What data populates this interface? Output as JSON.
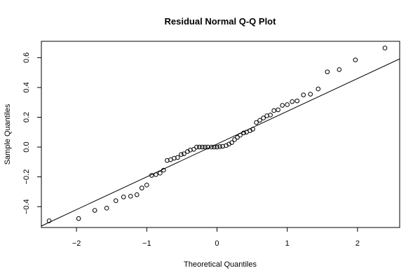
{
  "chart_data": {
    "type": "scatter",
    "title": "Residual Normal Q-Q Plot",
    "xlabel": "Theoretical Quantiles",
    "ylabel": "Sample Quantiles",
    "xlim": [
      -2.5,
      2.6
    ],
    "ylim": [
      -0.54,
      0.71
    ],
    "x_ticks": [
      {
        "value": -2,
        "label": "−2"
      },
      {
        "value": -1,
        "label": "−1"
      },
      {
        "value": 0,
        "label": "0"
      },
      {
        "value": 1,
        "label": "1"
      },
      {
        "value": 2,
        "label": "2"
      }
    ],
    "y_ticks": [
      {
        "value": -0.4,
        "label": "−0.4"
      },
      {
        "value": -0.2,
        "label": "−0.2"
      },
      {
        "value": 0.0,
        "label": "0.0"
      },
      {
        "value": 0.2,
        "label": "0.2"
      },
      {
        "value": 0.4,
        "label": "0.4"
      },
      {
        "value": 0.6,
        "label": "0.6"
      }
    ],
    "grid": false,
    "reference_line": {
      "intercept": 0.02,
      "slope": 0.22
    },
    "points": [
      {
        "x": -2.39,
        "y": -0.495
      },
      {
        "x": -1.97,
        "y": -0.48
      },
      {
        "x": -1.74,
        "y": -0.425
      },
      {
        "x": -1.57,
        "y": -0.41
      },
      {
        "x": -1.44,
        "y": -0.36
      },
      {
        "x": -1.33,
        "y": -0.335
      },
      {
        "x": -1.23,
        "y": -0.33
      },
      {
        "x": -1.14,
        "y": -0.32
      },
      {
        "x": -1.07,
        "y": -0.275
      },
      {
        "x": -1.0,
        "y": -0.255
      },
      {
        "x": -0.93,
        "y": -0.19
      },
      {
        "x": -0.87,
        "y": -0.185
      },
      {
        "x": -0.81,
        "y": -0.175
      },
      {
        "x": -0.76,
        "y": -0.155
      },
      {
        "x": -0.71,
        "y": -0.09
      },
      {
        "x": -0.66,
        "y": -0.085
      },
      {
        "x": -0.61,
        "y": -0.075
      },
      {
        "x": -0.56,
        "y": -0.07
      },
      {
        "x": -0.51,
        "y": -0.05
      },
      {
        "x": -0.47,
        "y": -0.045
      },
      {
        "x": -0.42,
        "y": -0.03
      },
      {
        "x": -0.38,
        "y": -0.02
      },
      {
        "x": -0.33,
        "y": -0.015
      },
      {
        "x": -0.29,
        "y": 0.0
      },
      {
        "x": -0.25,
        "y": 0.0
      },
      {
        "x": -0.21,
        "y": 0.0
      },
      {
        "x": -0.17,
        "y": 0.0
      },
      {
        "x": -0.13,
        "y": 0.0
      },
      {
        "x": -0.08,
        "y": 0.0
      },
      {
        "x": -0.04,
        "y": 0.0
      },
      {
        "x": 0.0,
        "y": 0.0
      },
      {
        "x": 0.04,
        "y": 0.003
      },
      {
        "x": 0.08,
        "y": 0.005
      },
      {
        "x": 0.13,
        "y": 0.01
      },
      {
        "x": 0.17,
        "y": 0.02
      },
      {
        "x": 0.21,
        "y": 0.03
      },
      {
        "x": 0.25,
        "y": 0.05
      },
      {
        "x": 0.29,
        "y": 0.065
      },
      {
        "x": 0.33,
        "y": 0.08
      },
      {
        "x": 0.38,
        "y": 0.095
      },
      {
        "x": 0.42,
        "y": 0.1
      },
      {
        "x": 0.47,
        "y": 0.11
      },
      {
        "x": 0.51,
        "y": 0.12
      },
      {
        "x": 0.56,
        "y": 0.165
      },
      {
        "x": 0.61,
        "y": 0.18
      },
      {
        "x": 0.66,
        "y": 0.195
      },
      {
        "x": 0.71,
        "y": 0.21
      },
      {
        "x": 0.76,
        "y": 0.215
      },
      {
        "x": 0.81,
        "y": 0.245
      },
      {
        "x": 0.87,
        "y": 0.25
      },
      {
        "x": 0.93,
        "y": 0.28
      },
      {
        "x": 1.0,
        "y": 0.285
      },
      {
        "x": 1.07,
        "y": 0.305
      },
      {
        "x": 1.14,
        "y": 0.31
      },
      {
        "x": 1.23,
        "y": 0.35
      },
      {
        "x": 1.33,
        "y": 0.355
      },
      {
        "x": 1.44,
        "y": 0.39
      },
      {
        "x": 1.57,
        "y": 0.505
      },
      {
        "x": 1.74,
        "y": 0.52
      },
      {
        "x": 1.97,
        "y": 0.585
      },
      {
        "x": 2.39,
        "y": 0.665
      }
    ]
  }
}
